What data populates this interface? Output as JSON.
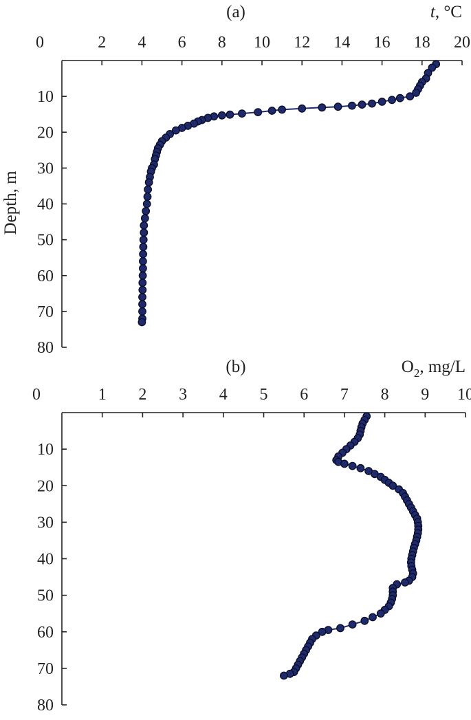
{
  "chart_data": [
    {
      "panel": "(a)",
      "type": "scatter",
      "xlabel_italic": "t",
      "xlabel_rest": ", °C",
      "ylabel": "Depth, m",
      "xlim": [
        0,
        20
      ],
      "ylim": [
        0,
        80
      ],
      "y_inverted": true,
      "x_axis_position": "top",
      "xticks": [
        "0",
        "2",
        "4",
        "6",
        "8",
        "10",
        "12",
        "14",
        "16",
        "18",
        "20"
      ],
      "yticks": [
        "10",
        "20",
        "30",
        "40",
        "50",
        "60",
        "70",
        "80"
      ],
      "series": [
        {
          "color": "#1f2a6b",
          "points": [
            [
              18.7,
              1
            ],
            [
              18.5,
              2
            ],
            [
              18.3,
              3.5
            ],
            [
              18.2,
              5
            ],
            [
              18.0,
              6
            ],
            [
              17.9,
              7
            ],
            [
              17.8,
              8
            ],
            [
              17.7,
              9
            ],
            [
              17.4,
              10
            ],
            [
              16.9,
              10.5
            ],
            [
              16.5,
              11
            ],
            [
              16.0,
              11.5
            ],
            [
              15.5,
              12
            ],
            [
              15.0,
              12.3
            ],
            [
              14.5,
              12.6
            ],
            [
              13.8,
              12.9
            ],
            [
              13.0,
              13.1
            ],
            [
              12.0,
              13.4
            ],
            [
              11.0,
              13.7
            ],
            [
              10.5,
              14
            ],
            [
              9.8,
              14.4
            ],
            [
              9.0,
              14.8
            ],
            [
              8.4,
              15.1
            ],
            [
              8.0,
              15.3
            ],
            [
              7.6,
              15.6
            ],
            [
              7.3,
              16
            ],
            [
              7.0,
              16.6
            ],
            [
              6.8,
              17
            ],
            [
              6.6,
              17.6
            ],
            [
              6.3,
              18.2
            ],
            [
              6.0,
              18.8
            ],
            [
              5.7,
              19.5
            ],
            [
              5.4,
              20.5
            ],
            [
              5.2,
              21.5
            ],
            [
              5.0,
              22.5
            ],
            [
              4.9,
              23.5
            ],
            [
              4.8,
              24.5
            ],
            [
              4.75,
              25.5
            ],
            [
              4.7,
              26.5
            ],
            [
              4.65,
              27.5
            ],
            [
              4.6,
              29
            ],
            [
              4.5,
              30
            ],
            [
              4.45,
              31
            ],
            [
              4.4,
              32.5
            ],
            [
              4.35,
              34
            ],
            [
              4.3,
              36
            ],
            [
              4.28,
              38
            ],
            [
              4.25,
              40
            ],
            [
              4.2,
              42
            ],
            [
              4.15,
              44
            ],
            [
              4.1,
              46
            ],
            [
              4.1,
              48
            ],
            [
              4.08,
              50
            ],
            [
              4.07,
              52
            ],
            [
              4.06,
              54
            ],
            [
              4.05,
              56
            ],
            [
              4.05,
              58
            ],
            [
              4.04,
              60
            ],
            [
              4.03,
              62
            ],
            [
              4.03,
              64
            ],
            [
              4.02,
              66
            ],
            [
              4.02,
              68
            ],
            [
              4.02,
              70
            ],
            [
              4.02,
              72
            ],
            [
              4.0,
              73
            ]
          ]
        }
      ]
    },
    {
      "panel": "(b)",
      "type": "scatter",
      "xlabel_main": "O",
      "xlabel_sub": "2",
      "xlabel_rest": ", mg/L",
      "ylabel": "",
      "xlim": [
        0,
        10
      ],
      "ylim": [
        0,
        80
      ],
      "y_inverted": true,
      "x_axis_position": "top",
      "xticks": [
        "0",
        "1",
        "2",
        "3",
        "4",
        "5",
        "6",
        "7",
        "8",
        "9",
        "10"
      ],
      "yticks": [
        "10",
        "20",
        "30",
        "40",
        "50",
        "60",
        "70",
        "80"
      ],
      "series": [
        {
          "color": "#1f2a6b",
          "points": [
            [
              7.55,
              1
            ],
            [
              7.5,
              2
            ],
            [
              7.45,
              3
            ],
            [
              7.42,
              4
            ],
            [
              7.4,
              5
            ],
            [
              7.38,
              6
            ],
            [
              7.33,
              7
            ],
            [
              7.25,
              8
            ],
            [
              7.15,
              9
            ],
            [
              7.05,
              10
            ],
            [
              6.95,
              11
            ],
            [
              6.85,
              12
            ],
            [
              6.8,
              13
            ],
            [
              6.85,
              13.5
            ],
            [
              7.0,
              14
            ],
            [
              7.2,
              14.6
            ],
            [
              7.4,
              15.2
            ],
            [
              7.6,
              16
            ],
            [
              7.75,
              16.8
            ],
            [
              7.9,
              17.6
            ],
            [
              8.0,
              18.4
            ],
            [
              8.1,
              19.2
            ],
            [
              8.2,
              20
            ],
            [
              8.35,
              21
            ],
            [
              8.45,
              22
            ],
            [
              8.5,
              23
            ],
            [
              8.55,
              24
            ],
            [
              8.6,
              25
            ],
            [
              8.65,
              26
            ],
            [
              8.7,
              27
            ],
            [
              8.75,
              28
            ],
            [
              8.8,
              29
            ],
            [
              8.82,
              30
            ],
            [
              8.83,
              31
            ],
            [
              8.83,
              32
            ],
            [
              8.82,
              33
            ],
            [
              8.8,
              34
            ],
            [
              8.78,
              35
            ],
            [
              8.75,
              36
            ],
            [
              8.72,
              37
            ],
            [
              8.7,
              38
            ],
            [
              8.68,
              39
            ],
            [
              8.66,
              40
            ],
            [
              8.65,
              41
            ],
            [
              8.66,
              42
            ],
            [
              8.68,
              43
            ],
            [
              8.7,
              44
            ],
            [
              8.68,
              45
            ],
            [
              8.6,
              46
            ],
            [
              8.5,
              46.5
            ],
            [
              8.3,
              47
            ],
            [
              8.2,
              48
            ],
            [
              8.2,
              49
            ],
            [
              8.2,
              50
            ],
            [
              8.18,
              51
            ],
            [
              8.15,
              52
            ],
            [
              8.1,
              53
            ],
            [
              8.0,
              54
            ],
            [
              7.9,
              55
            ],
            [
              7.7,
              56
            ],
            [
              7.5,
              57
            ],
            [
              7.2,
              58
            ],
            [
              6.9,
              59
            ],
            [
              6.6,
              59.5
            ],
            [
              6.45,
              60
            ],
            [
              6.3,
              61
            ],
            [
              6.2,
              62
            ],
            [
              6.15,
              63
            ],
            [
              6.1,
              64
            ],
            [
              6.05,
              65
            ],
            [
              6.0,
              66
            ],
            [
              5.95,
              67
            ],
            [
              5.9,
              68
            ],
            [
              5.85,
              69
            ],
            [
              5.8,
              70
            ],
            [
              5.75,
              71
            ],
            [
              5.65,
              71.5
            ],
            [
              5.5,
              72
            ]
          ]
        }
      ]
    }
  ]
}
